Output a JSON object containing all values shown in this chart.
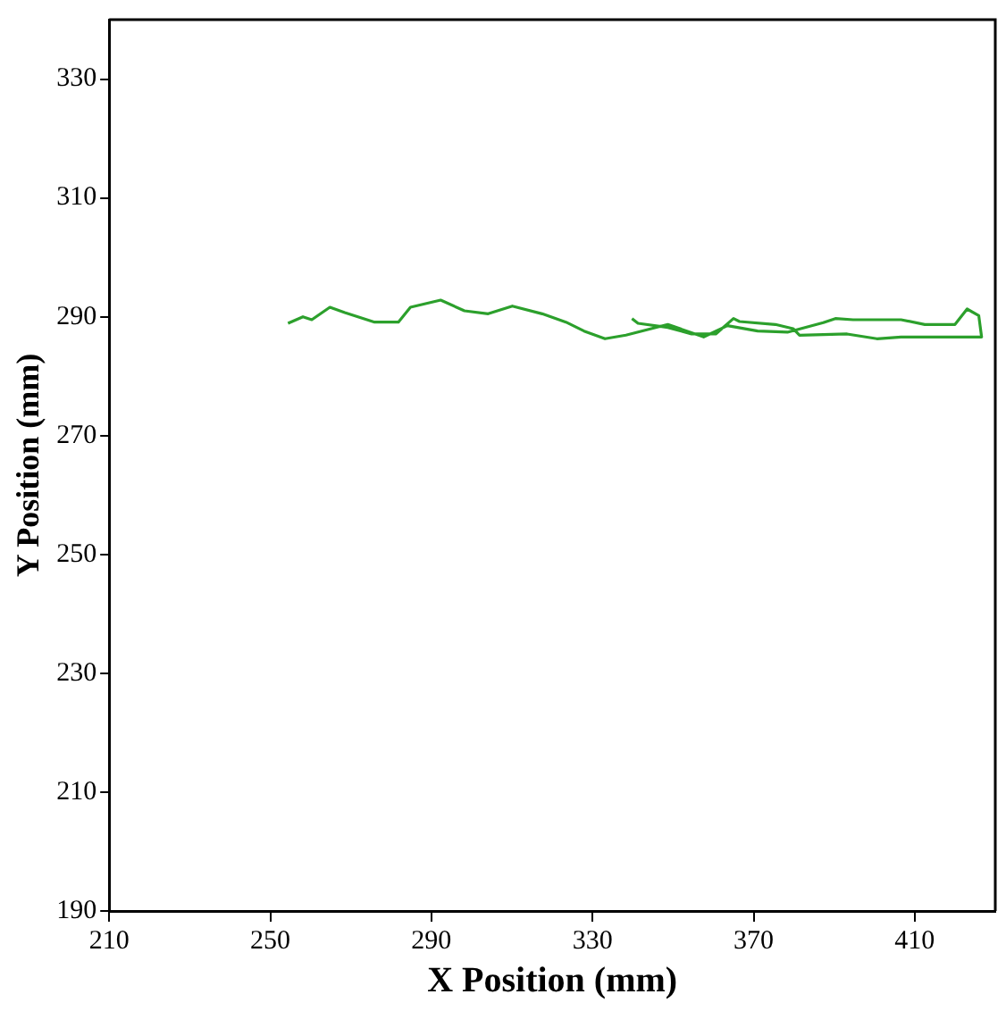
{
  "chart_data": {
    "type": "line",
    "xlabel": "X Position (mm)",
    "ylabel": "Y Position (mm)",
    "xlim": [
      210,
      430
    ],
    "xticks": [
      210,
      250,
      290,
      330,
      370,
      410
    ],
    "ylim": [
      190,
      340
    ],
    "yticks": [
      190,
      210,
      230,
      250,
      270,
      290,
      310,
      330
    ],
    "grid": false,
    "legend": false,
    "marker": "none",
    "series": [
      {
        "color": "#2ca02c",
        "x": [
          254.4,
          258.1,
          260.3,
          264.8,
          268.5,
          275.9,
          281.8,
          284.8,
          292.3,
          298.2,
          304.1,
          310.1,
          317.5,
          323.4,
          327.9,
          333.1,
          338.3,
          348.7,
          357.6,
          363.5,
          371.0,
          378.4,
          387.3,
          390.3,
          394.7,
          406.6,
          412.5,
          420.0,
          423.0,
          425.9,
          426.6,
          406.6,
          400.6,
          393.2,
          381.4,
          379.8,
          375.4,
          366.5,
          365.0,
          360.6,
          354.6,
          348.7,
          341.3,
          339.8
        ],
        "values": [
          288.9,
          290.0,
          289.5,
          291.6,
          290.7,
          289.1,
          289.1,
          291.6,
          292.8,
          291.0,
          290.5,
          291.8,
          290.5,
          289.1,
          287.6,
          286.3,
          286.9,
          288.7,
          286.6,
          288.5,
          287.6,
          287.4,
          289.0,
          289.7,
          289.5,
          289.5,
          288.7,
          288.7,
          291.3,
          290.2,
          286.6,
          286.6,
          286.3,
          287.1,
          286.9,
          288.0,
          288.7,
          289.2,
          289.7,
          287.1,
          287.1,
          288.2,
          288.9,
          289.7
        ]
      }
    ]
  }
}
